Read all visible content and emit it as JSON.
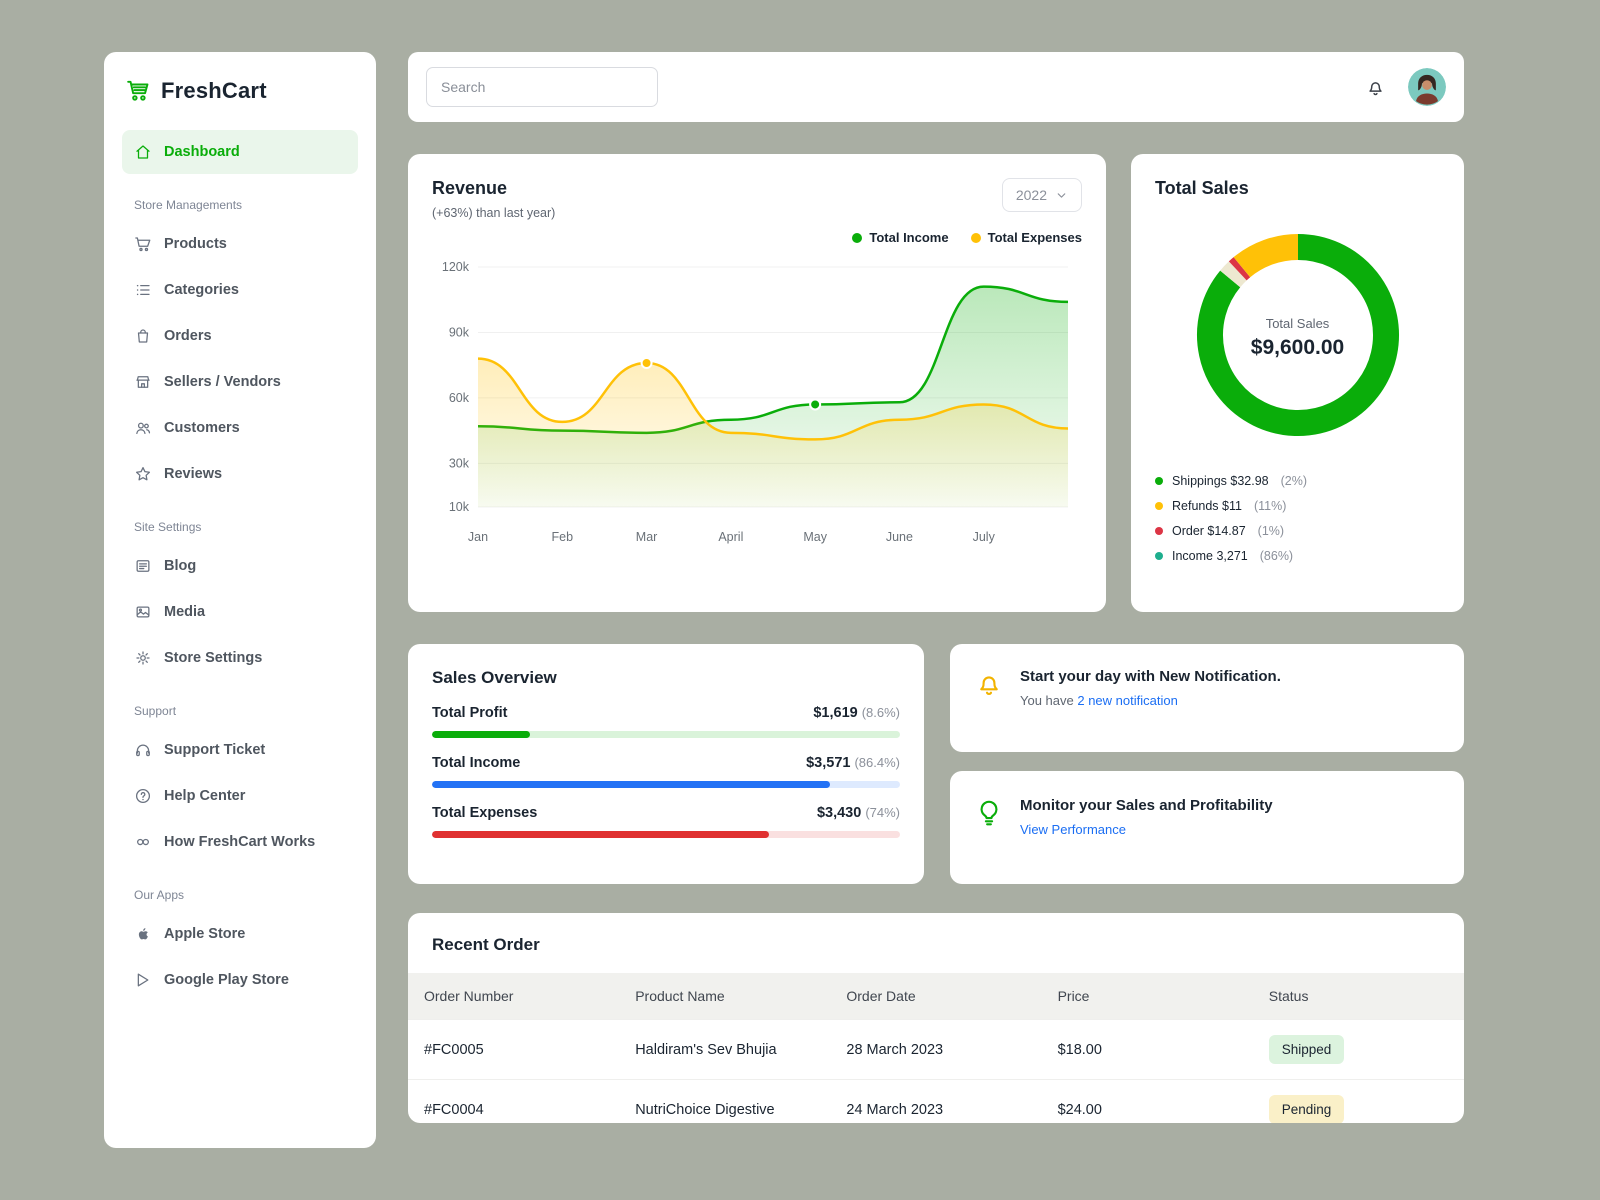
{
  "theme": {
    "page_bg": "#A9AEA3",
    "accent_green": "#0AAD0A",
    "link_blue": "#1B6EF3",
    "warning_yellow": "#FFC107",
    "danger_red": "#DC3545"
  },
  "brand": {
    "name": "FreshCart"
  },
  "topbar": {
    "search_placeholder": "Search"
  },
  "sidebar": {
    "dashboard_label": "Dashboard",
    "sections": [
      {
        "label": "Store Managements",
        "items": [
          {
            "label": "Products",
            "icon": "cart-icon"
          },
          {
            "label": "Categories",
            "icon": "list-icon"
          },
          {
            "label": "Orders",
            "icon": "bag-icon"
          },
          {
            "label": "Sellers / Vendors",
            "icon": "store-icon"
          },
          {
            "label": "Customers",
            "icon": "users-icon"
          },
          {
            "label": "Reviews",
            "icon": "star-icon"
          }
        ]
      },
      {
        "label": "Site Settings",
        "items": [
          {
            "label": "Blog",
            "icon": "news-icon"
          },
          {
            "label": "Media",
            "icon": "image-icon"
          },
          {
            "label": "Store Settings",
            "icon": "gear-icon"
          }
        ]
      },
      {
        "label": "Support",
        "items": [
          {
            "label": "Support Ticket",
            "icon": "headphones-icon"
          },
          {
            "label": "Help Center",
            "icon": "help-icon"
          },
          {
            "label": "How FreshCart Works",
            "icon": "rings-icon"
          }
        ]
      },
      {
        "label": "Our Apps",
        "items": [
          {
            "label": "Apple Store",
            "icon": "apple-icon"
          },
          {
            "label": "Google Play Store",
            "icon": "play-icon"
          }
        ]
      }
    ]
  },
  "revenue_card": {
    "title": "Revenue",
    "subtitle": "(+63%) than last year)",
    "year": "2022",
    "legend": [
      {
        "label": "Total Income",
        "color": "#0AAD0A"
      },
      {
        "label": "Total Expenses",
        "color": "#FFC107"
      }
    ]
  },
  "chart_data": [
    {
      "type": "area",
      "title": "Revenue",
      "x": [
        "Jan",
        "Feb",
        "Mar",
        "April",
        "May",
        "June",
        "July",
        ""
      ],
      "series": [
        {
          "name": "Total Income",
          "color": "#0AAD0A",
          "values": [
            47,
            45,
            44,
            50,
            57,
            58,
            111,
            104
          ],
          "marker_index": 4
        },
        {
          "name": "Total Expenses",
          "color": "#FFC107",
          "values": [
            78,
            49,
            76,
            44,
            41,
            50,
            57,
            46
          ],
          "marker_index": 2
        }
      ],
      "unit": "k",
      "yticks": [
        120,
        90,
        60,
        30,
        10
      ],
      "ylim": [
        10,
        120
      ],
      "legend_position": "top-right",
      "grid": "horizontal"
    },
    {
      "type": "pie",
      "title": "Total Sales",
      "center_label": "Total Sales",
      "center_value": "$9,600.00",
      "segments": [
        {
          "label": "Income",
          "value": 86,
          "color": "#0AAD0A"
        },
        {
          "label": "Shippings",
          "value": 2,
          "color": "#EDE8D0"
        },
        {
          "label": "Order",
          "value": 1,
          "color": "#DC3545"
        },
        {
          "label": "Refunds",
          "value": 11,
          "color": "#FFC107"
        }
      ]
    }
  ],
  "total_sales_card": {
    "title": "Total Sales",
    "center_label": "Total Sales",
    "center_value": "$9,600.00",
    "legend": [
      {
        "label": "Shippings $32.98",
        "pct": "(2%)",
        "color": "#0AAD0A"
      },
      {
        "label": "Refunds $11",
        "pct": "(11%)",
        "color": "#FFC107"
      },
      {
        "label": "Order $14.87",
        "pct": "(1%)",
        "color": "#DC3545"
      },
      {
        "label": "Income 3,271",
        "pct": "(86%)",
        "color": "#1EAE8E"
      }
    ]
  },
  "sales_overview": {
    "title": "Sales Overview",
    "rows": [
      {
        "label": "Total Profit",
        "value": "$1,619",
        "pct": "(8.6%)",
        "color": "#0AAD0A",
        "bar_pct": 21
      },
      {
        "label": "Total Income",
        "value": "$3,571",
        "pct": "(86.4%)",
        "color": "#2372F5",
        "bar_pct": 85
      },
      {
        "label": "Total Expenses",
        "value": "$3,430",
        "pct": "(74%)",
        "color": "#E03131",
        "bar_pct": 72
      }
    ]
  },
  "notification_card": {
    "title": "Start your day with New Notification.",
    "prefix": "You have ",
    "link": "2 new notification"
  },
  "monitor_card": {
    "title": "Monitor your Sales and Profitability",
    "link": "View Performance"
  },
  "recent_orders": {
    "title": "Recent Order",
    "columns": [
      "Order Number",
      "Product Name",
      "Order Date",
      "Price",
      "Status"
    ],
    "rows": [
      {
        "order_number": "#FC0005",
        "product": "Haldiram's Sev Bhujia",
        "date": "28 March 2023",
        "price": "$18.00",
        "status": "Shipped",
        "status_type": "shipped"
      },
      {
        "order_number": "#FC0004",
        "product": "NutriChoice Digestive",
        "date": "24 March 2023",
        "price": "$24.00",
        "status": "Pending",
        "status_type": "pending"
      }
    ]
  }
}
